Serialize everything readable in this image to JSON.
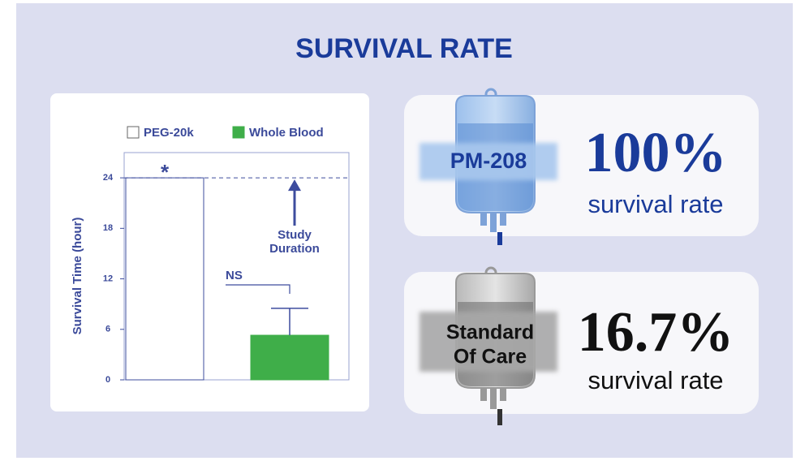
{
  "title": "SURVIVAL RATE",
  "chart_data": {
    "type": "bar",
    "y_label": "Survival Time (hour)",
    "categories": [
      null
    ],
    "series": [
      {
        "name": "PEG-20k",
        "color": "#ffffff",
        "values": [
          24
        ]
      },
      {
        "name": "Whole Blood",
        "color": "#3fae49",
        "values": [
          5.3
        ],
        "errors": [
          3.2
        ]
      }
    ],
    "ylim": [
      0,
      27
    ],
    "yticks": [
      0,
      6,
      12,
      18,
      24
    ],
    "reference_line": 24,
    "annotations": {
      "asterisk": "*",
      "ns": "NS",
      "study_duration": [
        "Study",
        "Duration"
      ]
    }
  },
  "cards": [
    {
      "label": [
        "PM-208"
      ],
      "value": "100%",
      "caption": "survival rate"
    },
    {
      "label": [
        "Standard",
        "Of Care"
      ],
      "value": "16.7%",
      "caption": "survival rate"
    }
  ]
}
